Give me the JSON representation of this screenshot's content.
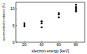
{
  "chart_data": {
    "type": "scatter",
    "x_label": "electron energy [keV]",
    "y_label": "accumulated emittance [%]",
    "x": [
      20,
      20,
      20,
      40,
      40,
      40,
      60,
      60,
      60,
      80,
      80,
      80,
      80,
      80
    ],
    "values": [
      5.7,
      5.2,
      4.8,
      6.3,
      5.7,
      4.5,
      8.8,
      8.4,
      7.5,
      11.3,
      10.6,
      10.2,
      9.7,
      9.3
    ],
    "color": "#000000",
    "marker": "circle",
    "xlim": [
      10,
      90
    ],
    "xticks": [
      20,
      40,
      60,
      80
    ],
    "ylim": [
      0,
      12
    ],
    "yticks": [
      0,
      5,
      10
    ],
    "grid": false
  }
}
